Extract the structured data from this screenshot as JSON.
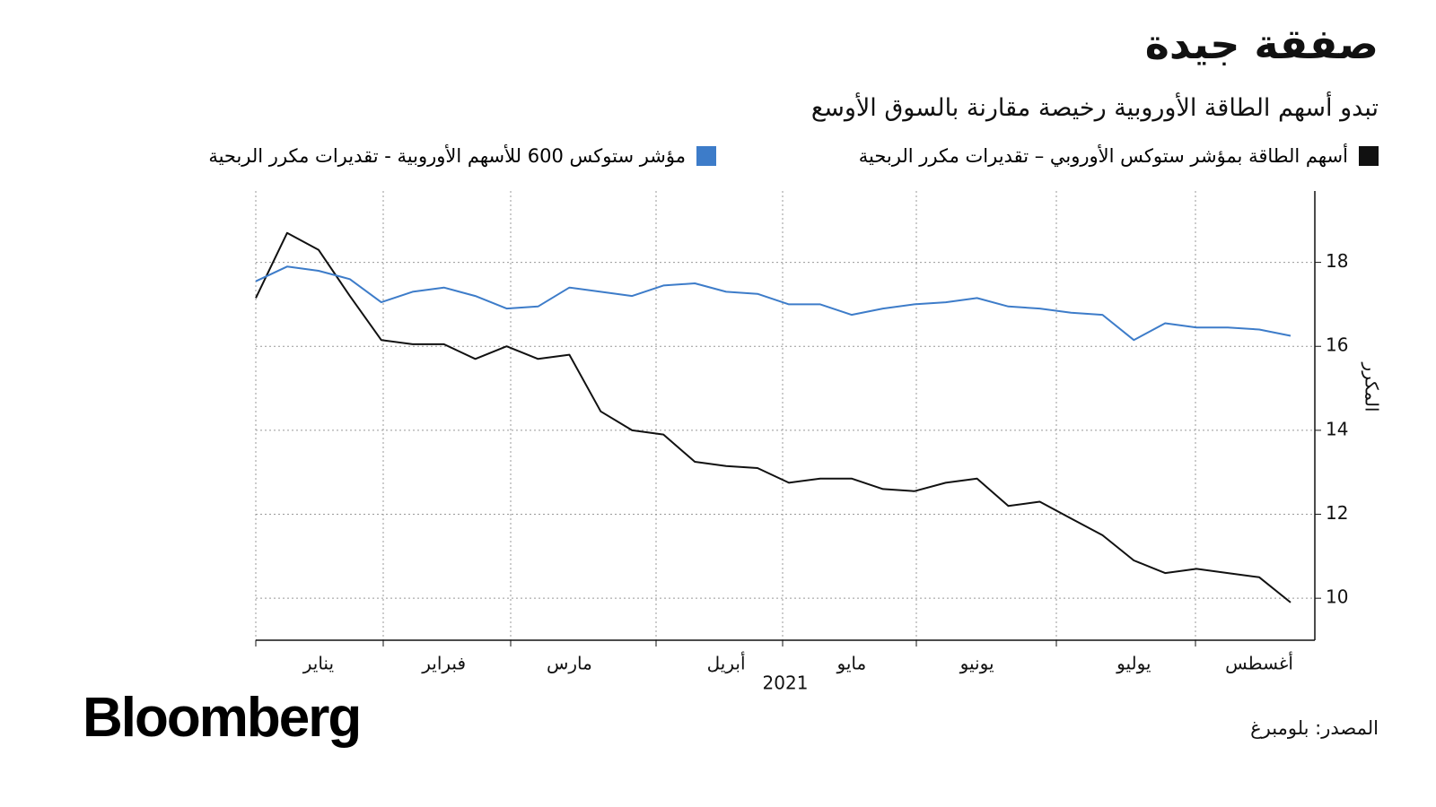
{
  "chart_data": {
    "type": "line",
    "title": "صفقة جيدة",
    "subtitle": "تبدو أسهم الطاقة الأوروبية رخيصة مقارنة بالسوق الأوسع",
    "xlabel": "2021",
    "ylabel": "المكرر",
    "source": "المصدر: بلومبرغ",
    "logo": "Bloomberg",
    "categories": [
      null,
      null,
      "يناير",
      null,
      null,
      null,
      "فبراير",
      null,
      null,
      null,
      "مارس",
      null,
      null,
      null,
      null,
      "أبريل",
      null,
      null,
      null,
      "مايو",
      null,
      null,
      null,
      "يونيو",
      null,
      null,
      null,
      null,
      "يوليو",
      null,
      null,
      null,
      "أغسطس",
      null
    ],
    "series": [
      {
        "name": "أسهم الطاقة بمؤشر ستوكس الأوروبي – تقديرات مكرر الربحية",
        "color": "#111111",
        "values": [
          17.15,
          18.7,
          18.3,
          17.2,
          16.15,
          16.05,
          16.05,
          15.7,
          16.0,
          15.7,
          15.8,
          14.45,
          14.0,
          13.9,
          13.25,
          13.15,
          13.1,
          12.75,
          12.85,
          12.85,
          12.6,
          12.55,
          12.75,
          12.85,
          12.2,
          12.3,
          11.9,
          11.5,
          10.9,
          10.6,
          10.7,
          10.6,
          10.5,
          9.9
        ]
      },
      {
        "name": "مؤشر ستوكس 600 للأسهم الأوروبية - تقديرات مكرر الربحية",
        "color": "#3d7cc9",
        "values": [
          17.55,
          17.9,
          17.8,
          17.6,
          17.05,
          17.3,
          17.4,
          17.2,
          16.9,
          16.95,
          17.4,
          17.3,
          17.2,
          17.45,
          17.5,
          17.3,
          17.25,
          17.0,
          17.0,
          16.75,
          16.9,
          17.0,
          17.05,
          17.15,
          16.95,
          16.9,
          16.8,
          16.75,
          16.15,
          16.55,
          16.45,
          16.45,
          16.4,
          16.25
        ]
      }
    ],
    "ylim": [
      9,
      19.7
    ],
    "yticks": [
      10,
      12,
      14,
      16,
      18
    ],
    "grid": true
  }
}
